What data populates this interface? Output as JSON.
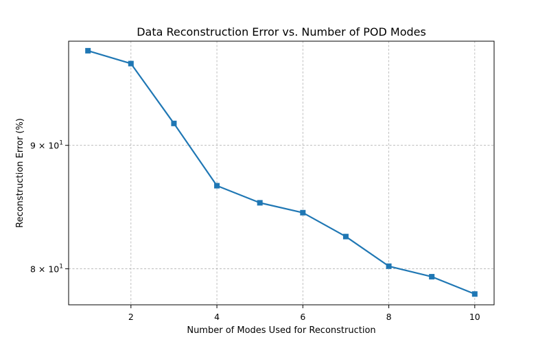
{
  "chart_data": {
    "type": "line",
    "title": "Data Reconstruction Error vs. Number of POD Modes",
    "xlabel": "Number of Modes Used for Reconstruction",
    "ylabel": "Reconstruction Error (%)",
    "x": [
      1,
      2,
      3,
      4,
      5,
      6,
      7,
      8,
      9,
      10
    ],
    "series": [
      {
        "values": [
          98.5,
          97.3,
          91.9,
          86.6,
          85.2,
          84.4,
          82.5,
          80.2,
          79.4,
          78.1
        ],
        "color": "#1f77b4",
        "marker": "square"
      }
    ],
    "xlim": [
      0.55,
      10.45
    ],
    "ylim": [
      77.3,
      99.4
    ],
    "y_scale": "log",
    "x_ticks": [
      {
        "value": 2,
        "label": "2"
      },
      {
        "value": 4,
        "label": "4"
      },
      {
        "value": 6,
        "label": "6"
      },
      {
        "value": 8,
        "label": "8"
      },
      {
        "value": 10,
        "label": "10"
      }
    ],
    "y_major_ticks": [
      {
        "value": 80,
        "mantissa": "8",
        "base": "10",
        "exponent": "1"
      },
      {
        "value": 90,
        "mantissa": "9",
        "base": "10",
        "exponent": "1"
      }
    ],
    "grid": true,
    "legend": "none"
  }
}
